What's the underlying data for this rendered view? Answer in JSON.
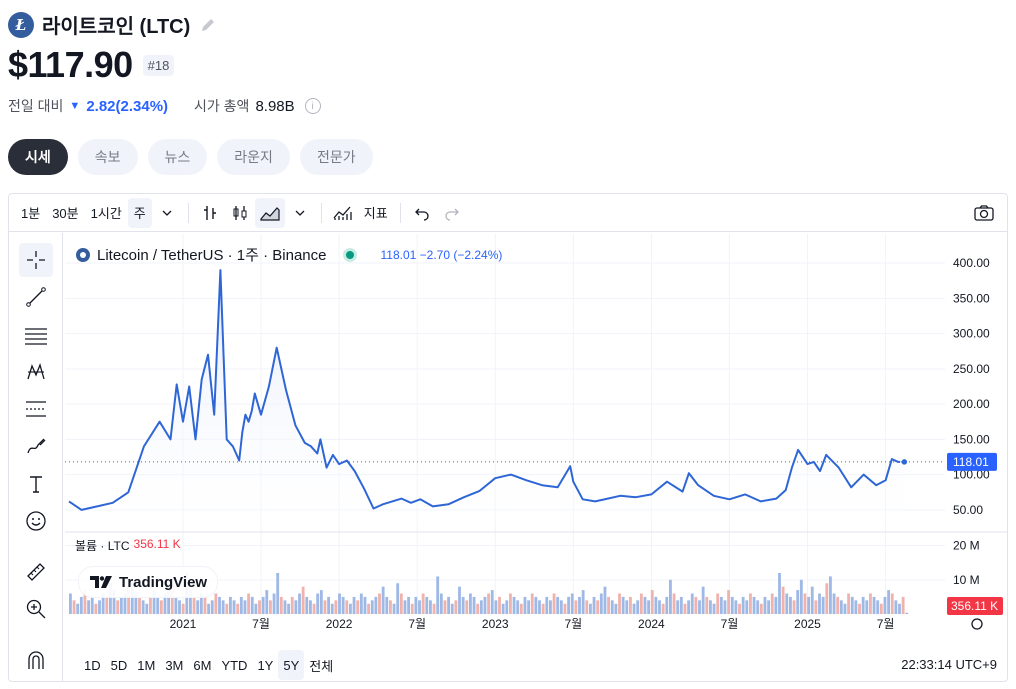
{
  "header": {
    "coin_logo_glyph": "Ł",
    "coin_name": "라이트코인 (LTC)",
    "price": "$117.90",
    "rank": "#18",
    "change_label": "전일 대비",
    "change_value": "2.82(2.34%)",
    "change_direction": "down",
    "market_cap_label": "시가 총액",
    "market_cap_value": "8.98B",
    "info_glyph": "i"
  },
  "tabs": [
    {
      "label": "시세",
      "active": true
    },
    {
      "label": "속보",
      "active": false
    },
    {
      "label": "뉴스",
      "active": false
    },
    {
      "label": "라운지",
      "active": false
    },
    {
      "label": "전문가",
      "active": false
    }
  ],
  "toolbar": {
    "intervals": [
      "1분",
      "30분",
      "1시간",
      "주"
    ],
    "selected_interval": "주",
    "indicators_label": "지표"
  },
  "legend": {
    "symbol": "Litecoin / TetherUS · 1주 · Binance",
    "values": "118.01  −2.70 (−2.24%)",
    "volume_label": "볼륨 · LTC",
    "volume_value": "356.11 K"
  },
  "branding": {
    "tradingview": "TradingView"
  },
  "bottom": {
    "ranges": [
      "1D",
      "5D",
      "1M",
      "3M",
      "6M",
      "YTD",
      "1Y",
      "5Y",
      "전체"
    ],
    "selected_range": "5Y",
    "clock": "22:33:14 UTC+9"
  },
  "colors": {
    "line": "#2f66d6",
    "area_top": "#dfe7fb",
    "vol_up": "#9fb9e6",
    "vol_down": "#f0b2ad",
    "badge_price": "#2962ff",
    "badge_volume": "#f23645"
  },
  "chart_data": {
    "type": "area",
    "title": "Litecoin / TetherUS · 1주 · Binance",
    "x_tick_labels": [
      "2021",
      "7월",
      "2022",
      "7월",
      "2023",
      "7월",
      "2024",
      "7월",
      "2025",
      "7월"
    ],
    "x_ticks": [
      2021.0,
      2021.5,
      2022.0,
      2022.5,
      2023.0,
      2023.5,
      2024.0,
      2024.5,
      2025.0,
      2025.5
    ],
    "price_axis_labels": [
      "400.00",
      "350.00",
      "300.00",
      "250.00",
      "200.00",
      "150.00",
      "100.00",
      "50.00"
    ],
    "price_axis_values": [
      400,
      350,
      300,
      250,
      200,
      150,
      100,
      50
    ],
    "volume_axis_labels": [
      "20 M",
      "10 M"
    ],
    "volume_axis_values": [
      20,
      10
    ],
    "ylim": [
      30,
      410
    ],
    "volume_ylim": [
      0,
      24
    ],
    "last_price_label": "118.01",
    "last_volume_label": "356.11 K",
    "series": [
      {
        "values_x": [
          2020.27,
          2020.35,
          2020.45,
          2020.55,
          2020.65,
          2020.75,
          2020.85,
          2020.92,
          2020.96,
          2021.0,
          2021.04,
          2021.08,
          2021.12,
          2021.16,
          2021.2,
          2021.24,
          2021.28,
          2021.32,
          2021.36,
          2021.38,
          2021.4,
          2021.42,
          2021.44,
          2021.46,
          2021.5,
          2021.55,
          2021.6,
          2021.66,
          2021.72,
          2021.78,
          2021.82,
          2021.86,
          2021.88,
          2021.92,
          2021.96,
          2022.0,
          2022.05,
          2022.1,
          2022.16,
          2022.22,
          2022.28,
          2022.34,
          2022.4,
          2022.46,
          2022.52,
          2022.6,
          2022.7,
          2022.8,
          2022.9,
          2023.0,
          2023.1,
          2023.2,
          2023.3,
          2023.4,
          2023.48,
          2023.5,
          2023.56,
          2023.64,
          2023.72,
          2023.8,
          2023.9,
          2024.0,
          2024.1,
          2024.2,
          2024.24,
          2024.3,
          2024.4,
          2024.5,
          2024.6,
          2024.7,
          2024.8,
          2024.86,
          2024.9,
          2024.94,
          2025.0,
          2025.04,
          2025.08,
          2025.12,
          2025.2,
          2025.28,
          2025.36,
          2025.44,
          2025.5,
          2025.54,
          2025.58,
          2025.62
        ],
        "values_y": [
          62,
          50,
          55,
          60,
          75,
          140,
          175,
          150,
          228,
          175,
          225,
          150,
          235,
          270,
          185,
          390,
          150,
          140,
          120,
          160,
          185,
          175,
          190,
          215,
          185,
          225,
          280,
          220,
          170,
          145,
          140,
          130,
          150,
          110,
          128,
          115,
          120,
          105,
          80,
          52,
          58,
          62,
          66,
          60,
          65,
          55,
          58,
          68,
          77,
          95,
          100,
          92,
          85,
          82,
          112,
          90,
          65,
          62,
          66,
          70,
          68,
          72,
          90,
          76,
          102,
          85,
          70,
          65,
          72,
          62,
          66,
          78,
          110,
          135,
          115,
          118,
          105,
          128,
          110,
          82,
          100,
          85,
          92,
          122,
          118,
          118.01
        ]
      }
    ],
    "volume_series": {
      "name": "볼륨 · LTC",
      "values": [
        6,
        4,
        3,
        5,
        7,
        4,
        5,
        3,
        4,
        6,
        5,
        9,
        7,
        4,
        5,
        6,
        8,
        10,
        6,
        5,
        4,
        3,
        5,
        7,
        5,
        4,
        6,
        8,
        9,
        5,
        4,
        3,
        12,
        7,
        5,
        4,
        6,
        5,
        3,
        4,
        6,
        5,
        4,
        3,
        5,
        4,
        3,
        5,
        4,
        6,
        5,
        3,
        4,
        5,
        7,
        4,
        6,
        12,
        5,
        4,
        3,
        5,
        4,
        6,
        8,
        5,
        4,
        3,
        6,
        7,
        4,
        5,
        3,
        4,
        6,
        5,
        4,
        3,
        5,
        4,
        6,
        5,
        3,
        4,
        5,
        6,
        8,
        5,
        4,
        3,
        9,
        6,
        4,
        5,
        3,
        5,
        4,
        6,
        5,
        4,
        3,
        11,
        6,
        4,
        5,
        3,
        4,
        8,
        5,
        4,
        6,
        5,
        3,
        4,
        5,
        6,
        7,
        4,
        5,
        3,
        4,
        6,
        5,
        4,
        3,
        5,
        4,
        6,
        5,
        4,
        3,
        5,
        4,
        6,
        5,
        4,
        3,
        5,
        6,
        4,
        5,
        7,
        4,
        3,
        5,
        4,
        6,
        8,
        5,
        4,
        3,
        6,
        5,
        4,
        5,
        3,
        4,
        6,
        5,
        4,
        7,
        5,
        4,
        3,
        5,
        10,
        6,
        4,
        5,
        3,
        4,
        6,
        5,
        4,
        8,
        5,
        4,
        3,
        6,
        5,
        4,
        7,
        5,
        4,
        3,
        5,
        4,
        6,
        5,
        4,
        3,
        5,
        4,
        6,
        5,
        12,
        8,
        6,
        5,
        4,
        7,
        10,
        6,
        5,
        8,
        4,
        6,
        5,
        9,
        11,
        6,
        5,
        4,
        3,
        6,
        5,
        4,
        3,
        5,
        4,
        6,
        5,
        4,
        3,
        5,
        7,
        6,
        4,
        3,
        5,
        0.36
      ],
      "directions": "up-down alternating by week"
    }
  }
}
